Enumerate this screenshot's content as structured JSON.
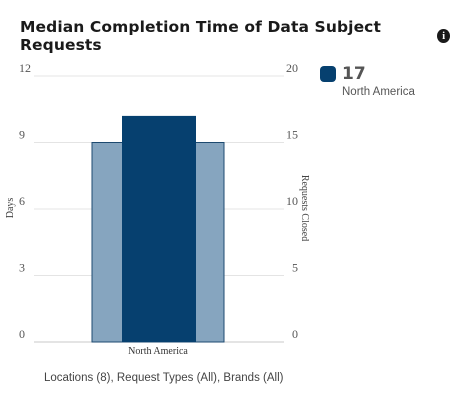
{
  "header": {
    "title": "Median Completion Time of Data Subject Requests",
    "info_icon": "info-icon"
  },
  "legend": {
    "value": "17",
    "label": "North America",
    "color": "#06406f"
  },
  "filters": {
    "text": "Locations (8), Request Types (All), Brands (All)"
  },
  "chart_data": {
    "type": "bar",
    "categories": [
      "North America"
    ],
    "series": [
      {
        "name": "Days",
        "axis": "left",
        "values": [
          9
        ],
        "color": "#86a5bf"
      },
      {
        "name": "Requests Closed",
        "axis": "right",
        "values": [
          17
        ],
        "color": "#06406f"
      }
    ],
    "ylabel_left": "Days",
    "ylabel_right": "Requests Closed",
    "ylim_left": [
      0,
      12
    ],
    "yticks_left": [
      0,
      3,
      6,
      9,
      12
    ],
    "ylim_right": [
      0,
      20
    ],
    "yticks_right": [
      0,
      5,
      10,
      15,
      20
    ],
    "grid": true
  }
}
